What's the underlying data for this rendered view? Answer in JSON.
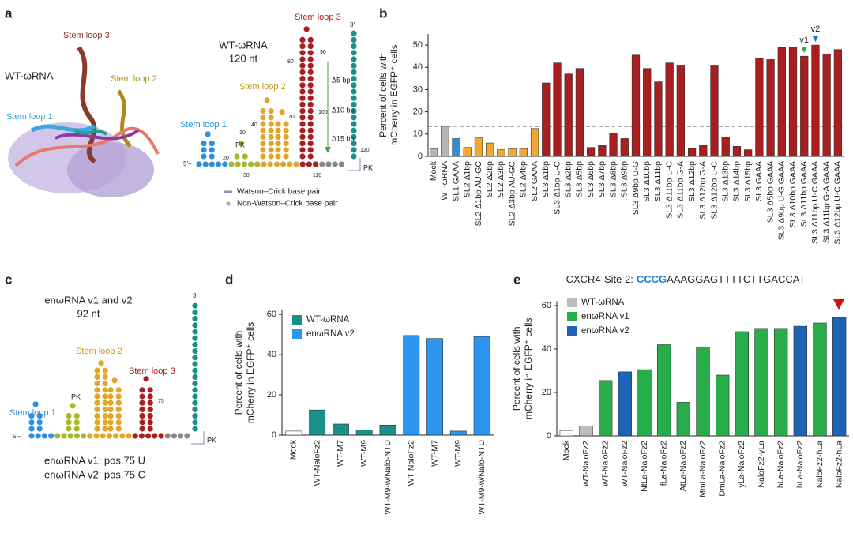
{
  "panel_labels": [
    "a",
    "b",
    "c",
    "d",
    "e"
  ],
  "panel_a": {
    "structure": {
      "stem_loop_3": "Stem loop 3",
      "name": "WT-ωRNA",
      "stem_loop_2": "Stem loop 2",
      "stem_loop_1": "Stem loop 1"
    },
    "secondary": {
      "stem_loop_3": "Stem loop 3",
      "name": "WT-ωRNA",
      "length": "120 nt",
      "stem_loop_2": "Stem loop 2",
      "stem_loop_1": "Stem loop 1",
      "pk": "PK",
      "deletions": [
        "Δ5 bp",
        "Δ10 bp",
        "Δ15 bp"
      ],
      "positions": [
        "10",
        "20",
        "30",
        "40",
        "70",
        "80",
        "90",
        "100",
        "110",
        "120"
      ],
      "three_prime": "3′",
      "five_prime": "5′–",
      "pk_right": "PK",
      "legend": [
        "Watson–Crick base pair",
        "Non-Watson–Crick base pair"
      ]
    }
  },
  "panel_c": {
    "name": "enωRNA v1 and v2",
    "length": "92 nt",
    "stem_loop_1": "Stem loop 1",
    "pk": "PK",
    "stem_loop_2": "Stem loop 2",
    "stem_loop_3": "Stem loop 3",
    "position": "75",
    "three_prime": "3′",
    "five_prime": "5′–",
    "pk_right": "PK",
    "notes": [
      "enωRNA v1: pos.75 U",
      "enωRNA v2: pos.75 C"
    ]
  },
  "chart_data": [
    {
      "type": "bar",
      "y_label": [
        "Percent of cells with",
        "mCherry in EGFP⁺ cells"
      ],
      "categories": [
        "Mock",
        "WT-ωRNA",
        "SL1 GAAA",
        "SL2 Δ1bp",
        "SL2 Δ1bp AU-GC",
        "SL2 Δ2bp",
        "SL2 Δ3bp",
        "SL2 Δ3bp AU-GC",
        "SL2 Δ4bp",
        "SL2 GAAA",
        "SL3 Δ1bp",
        "SL3 Δ1bp U-C",
        "SL3 Δ2bp",
        "SL3 Δ5bp",
        "SL3 Δ6bp",
        "SL3 Δ7bp",
        "SL3 Δ8bp",
        "SL3 Δ9bp",
        "SL3 Δ9bp U-G",
        "SL3 Δ10bp",
        "SL3 Δ11bp",
        "SL3 Δ11bp U-C",
        "SL3 Δ11bp G-A",
        "SL3 Δ12bp",
        "SL3 Δ12bp G-A",
        "SL3 Δ12bp U-C",
        "SL3 Δ13bp",
        "SL3 Δ14bp",
        "SL3 Δ15bp",
        "SL3 GAAA",
        "SL3 Δ5bp GAAA",
        "SL3 Δ9bp U-G GAAA",
        "SL3 Δ10bp GAAA",
        "SL3 Δ11bp GAAA",
        "SL3 Δ11bp U-C GAAA",
        "SL3 Δ11bp G-A GAAA",
        "SL3 Δ12bp U-C GAAA"
      ],
      "values": [
        3.5,
        13.5,
        8,
        4,
        8.5,
        6,
        3,
        3.5,
        3.5,
        12.5,
        33,
        42,
        37,
        39.5,
        4,
        5,
        10.5,
        8,
        45.5,
        39.5,
        33.5,
        42,
        41,
        3.5,
        5,
        41,
        8.5,
        4.5,
        3,
        44,
        43.5,
        49,
        49,
        45,
        50,
        46,
        48
      ],
      "colors": [
        "#b5b5b5",
        "#b5b5b5",
        "#2f8fd8",
        "#f0a830",
        "#f0a830",
        "#f0a830",
        "#f0a830",
        "#f0a830",
        "#f0a830",
        "#f0a830",
        "#a91e1e",
        "#a91e1e",
        "#a91e1e",
        "#a91e1e",
        "#a91e1e",
        "#a91e1e",
        "#a91e1e",
        "#a91e1e",
        "#a91e1e",
        "#a91e1e",
        "#a91e1e",
        "#a91e1e",
        "#a91e1e",
        "#a91e1e",
        "#a91e1e",
        "#a91e1e",
        "#a91e1e",
        "#a91e1e",
        "#a91e1e",
        "#a91e1e",
        "#a91e1e",
        "#a91e1e",
        "#a91e1e",
        "#a91e1e",
        "#a91e1e",
        "#a91e1e",
        "#a91e1e"
      ],
      "ylim": [
        0,
        55
      ],
      "yticks": [
        0,
        10,
        20,
        30,
        40,
        50
      ],
      "reference_line": 13.5,
      "annotations": [
        {
          "text": "v1",
          "category": "SL3 Δ11bp GAAA",
          "color": "#2db34a"
        },
        {
          "text": "v2",
          "category": "SL3 Δ11bp U-C GAAA",
          "color": "#1f6fd0"
        }
      ]
    },
    {
      "type": "bar",
      "y_label": [
        "Percent of cells with",
        "mCherry in EGFP⁺ cells"
      ],
      "categories": [
        "Mock",
        "WT-NaloFz2",
        "WT-M7",
        "WT-M9",
        "WT-M9-w/Nalo-NTD",
        "WT-NaloFz2",
        "WT-M7",
        "WT-M9",
        "WT-M9-w/Nalo-NTD"
      ],
      "values": [
        2,
        12.5,
        5.5,
        2.5,
        5,
        49.5,
        48,
        2,
        49
      ],
      "colors": [
        "#ffffff",
        "#1a9088",
        "#1a9088",
        "#1a9088",
        "#1a9088",
        "#2b95f0",
        "#2b95f0",
        "#2b95f0",
        "#2b95f0"
      ],
      "legend": [
        {
          "name": "WT-ωRNA",
          "color": "#1a9088"
        },
        {
          "name": "enωRNA v2",
          "color": "#2b95f0"
        }
      ],
      "ylim": [
        0,
        62
      ],
      "yticks": [
        0,
        20,
        40,
        60
      ]
    },
    {
      "type": "bar",
      "title": [
        {
          "text": "CXCR4-Site 2:",
          "color": "#222222"
        },
        {
          "text": "CCCG",
          "color": "#1e7fd0"
        },
        {
          "text": "AAAGGAGTTTTCTTGACCAT",
          "color": "#222222"
        }
      ],
      "y_label": [
        "Percent of cells with",
        "mCherry in EGFP⁺ cells"
      ],
      "categories": [
        "Mock",
        "WT-NaloFz2",
        "WT-NaloFz2",
        "WT-NaloFz2",
        "NtLa-NaloFz2",
        "fLa-NaloFz2",
        "AtLa-NaloFz2",
        "MmLa-NaloFz2",
        "DmLa-NaloFz2",
        "yLa-NaloFz2",
        "NaloFz2-yLa",
        "hLa-NaloFz2",
        "hLa-NaloFz2",
        "NaloFz2-hLa",
        "NaloFz2-hLa"
      ],
      "values": [
        2.5,
        4.5,
        25.5,
        29.5,
        30.5,
        42,
        15.5,
        41,
        28,
        48,
        49.5,
        49.5,
        50.5,
        52,
        54.5
      ],
      "colors": [
        "#ffffff",
        "#bdbdbd",
        "#27ae4a",
        "#1e63b5",
        "#27ae4a",
        "#27ae4a",
        "#27ae4a",
        "#27ae4a",
        "#27ae4a",
        "#27ae4a",
        "#27ae4a",
        "#27ae4a",
        "#1e63b5",
        "#27ae4a",
        "#1e63b5"
      ],
      "legend": [
        {
          "name": "WT-ωRNA",
          "color": "#bdbdbd"
        },
        {
          "name": "enωRNA v1",
          "color": "#27ae4a"
        },
        {
          "name": "enωRNA v2",
          "color": "#1e63b5"
        }
      ],
      "ylim": [
        0,
        62
      ],
      "yticks": [
        0,
        20,
        40,
        60
      ]
    }
  ]
}
